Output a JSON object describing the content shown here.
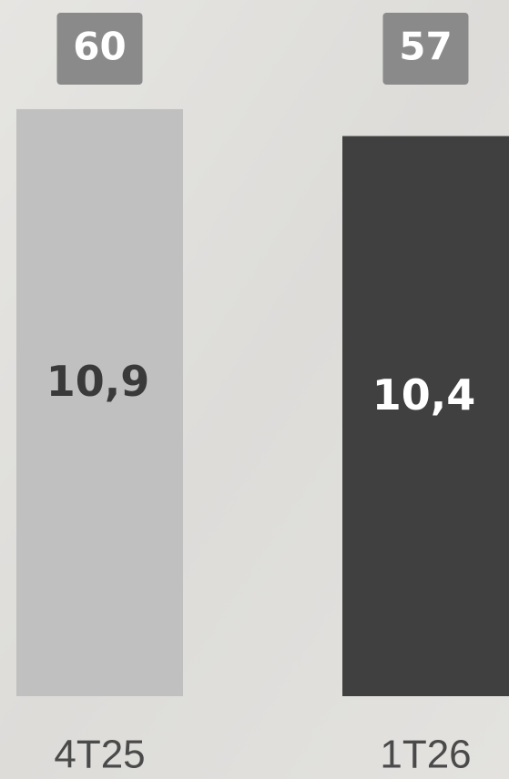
{
  "chart_data": {
    "type": "bar",
    "categories": [
      "4T25",
      "1T26"
    ],
    "values": [
      10.9,
      10.4
    ],
    "value_labels": [
      "10,9",
      "10,4"
    ],
    "colors": [
      "#c0c0c0",
      "#404040"
    ],
    "badges": [
      60,
      57
    ],
    "badge_color": "#8a8a8a",
    "ylim": [
      0,
      11
    ]
  }
}
